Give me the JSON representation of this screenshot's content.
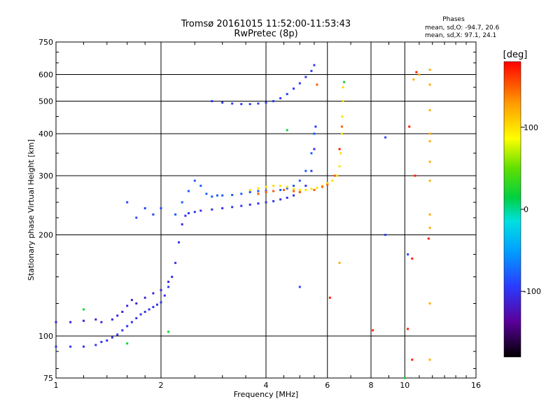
{
  "chart_data": {
    "type": "scatter",
    "title": "Tromsø 20161015 11:52:00-11:53:43",
    "subtitle": "RwPretec (8p)",
    "stats": {
      "heading": "Phases",
      "line1": "mean, sd,O: -94.7, 20.6",
      "line2": "mean, sd,X:  97.1, 24.1"
    },
    "xlabel": "Frequency [MHz]",
    "ylabel": "Stationary phase Virtual Height [km]",
    "x_scale": "log",
    "y_scale": "log",
    "xlim": [
      1,
      16
    ],
    "ylim": [
      75,
      750
    ],
    "x_ticks": [
      {
        "value": 1,
        "label": "1"
      },
      {
        "value": 2,
        "label": "2"
      },
      {
        "value": 4,
        "label": "4"
      },
      {
        "value": 6,
        "label": "6"
      },
      {
        "value": 8,
        "label": "8"
      },
      {
        "value": 10,
        "label": "10"
      },
      {
        "value": 16,
        "label": "16"
      }
    ],
    "y_ticks": [
      {
        "value": 75,
        "label": "75"
      },
      {
        "value": 100,
        "label": "100"
      },
      {
        "value": 200,
        "label": "200"
      },
      {
        "value": 300,
        "label": "300"
      },
      {
        "value": 400,
        "label": "400"
      },
      {
        "value": 500,
        "label": "500"
      },
      {
        "value": 600,
        "label": "600"
      },
      {
        "value": 750,
        "label": "750"
      }
    ],
    "grid_x": [
      2,
      4,
      6,
      8,
      10
    ],
    "grid_y": [
      100,
      200,
      300,
      400,
      500,
      600
    ],
    "colorbar": {
      "label": "[deg]",
      "range": [
        -180,
        180
      ],
      "ticks": [
        {
          "value": 100,
          "label": "100"
        },
        {
          "value": 0,
          "label": "0"
        },
        {
          "value": -100,
          "label": "-100"
        }
      ]
    },
    "series": [
      {
        "phase": -100,
        "points": [
          [
            1.0,
            93
          ],
          [
            1.1,
            93
          ],
          [
            1.2,
            93
          ],
          [
            1.3,
            94
          ],
          [
            1.35,
            96
          ],
          [
            1.4,
            97
          ],
          [
            1.45,
            99
          ],
          [
            1.5,
            101
          ],
          [
            1.55,
            104
          ],
          [
            1.6,
            107
          ],
          [
            1.65,
            110
          ],
          [
            1.7,
            113
          ],
          [
            1.75,
            116
          ],
          [
            1.8,
            118
          ],
          [
            1.85,
            120
          ],
          [
            1.9,
            122
          ],
          [
            1.95,
            124
          ],
          [
            2.0,
            126
          ],
          [
            2.05,
            132
          ],
          [
            2.1,
            140
          ],
          [
            2.15,
            150
          ],
          [
            2.2,
            165
          ],
          [
            2.25,
            190
          ],
          [
            2.3,
            215
          ],
          [
            2.35,
            228
          ],
          [
            2.4,
            232
          ],
          [
            2.5,
            234
          ],
          [
            2.6,
            236
          ],
          [
            2.8,
            238
          ],
          [
            3.0,
            240
          ],
          [
            3.2,
            242
          ],
          [
            3.4,
            244
          ],
          [
            3.6,
            246
          ],
          [
            3.8,
            248
          ],
          [
            4.0,
            250
          ],
          [
            4.2,
            252
          ],
          [
            4.4,
            255
          ],
          [
            4.6,
            258
          ],
          [
            4.8,
            262
          ],
          [
            5.0,
            268
          ],
          [
            5.2,
            280
          ],
          [
            5.4,
            310
          ],
          [
            5.5,
            360
          ],
          [
            5.55,
            420
          ]
        ]
      },
      {
        "phase": -110,
        "points": [
          [
            1.0,
            110
          ],
          [
            1.1,
            110
          ],
          [
            1.2,
            111
          ],
          [
            1.3,
            112
          ],
          [
            1.35,
            110
          ],
          [
            1.45,
            112
          ],
          [
            1.5,
            115
          ],
          [
            1.55,
            118
          ],
          [
            1.6,
            123
          ],
          [
            1.65,
            128
          ],
          [
            1.7,
            125
          ],
          [
            1.8,
            130
          ],
          [
            1.9,
            134
          ],
          [
            2.0,
            137
          ],
          [
            2.1,
            145
          ]
        ]
      },
      {
        "phase": -80,
        "points": [
          [
            2.2,
            230
          ],
          [
            2.3,
            250
          ],
          [
            2.4,
            270
          ],
          [
            2.5,
            290
          ],
          [
            2.6,
            280
          ],
          [
            2.7,
            265
          ],
          [
            2.8,
            260
          ],
          [
            2.9,
            262
          ],
          [
            3.0,
            262
          ],
          [
            3.2,
            263
          ],
          [
            3.4,
            265
          ],
          [
            3.6,
            268
          ],
          [
            3.8,
            270
          ],
          [
            4.0,
            270
          ],
          [
            4.2,
            270
          ],
          [
            4.4,
            272
          ],
          [
            4.6,
            275
          ],
          [
            4.8,
            280
          ],
          [
            5.0,
            290
          ],
          [
            5.2,
            310
          ],
          [
            5.4,
            350
          ],
          [
            5.5,
            400
          ]
        ]
      },
      {
        "phase": -95,
        "points": [
          [
            2.8,
            500
          ],
          [
            3.0,
            495
          ],
          [
            3.2,
            492
          ],
          [
            3.4,
            490
          ],
          [
            3.6,
            490
          ],
          [
            3.8,
            492
          ],
          [
            4.0,
            495
          ],
          [
            4.2,
            500
          ],
          [
            4.4,
            510
          ],
          [
            4.6,
            525
          ],
          [
            4.8,
            545
          ],
          [
            5.0,
            565
          ],
          [
            5.2,
            590
          ],
          [
            5.4,
            615
          ],
          [
            5.5,
            640
          ]
        ]
      },
      {
        "phase": 100,
        "points": [
          [
            3.6,
            272
          ],
          [
            3.8,
            275
          ],
          [
            4.0,
            278
          ],
          [
            4.2,
            280
          ],
          [
            4.4,
            280
          ],
          [
            4.6,
            278
          ],
          [
            4.8,
            274
          ],
          [
            5.0,
            272
          ],
          [
            5.2,
            272
          ],
          [
            5.4,
            274
          ],
          [
            5.6,
            276
          ],
          [
            5.8,
            280
          ],
          [
            6.0,
            285
          ],
          [
            6.2,
            290
          ],
          [
            6.4,
            300
          ],
          [
            6.5,
            320
          ],
          [
            6.55,
            350
          ],
          [
            6.6,
            400
          ],
          [
            6.62,
            450
          ],
          [
            6.65,
            500
          ],
          [
            6.65,
            550
          ]
        ]
      },
      {
        "phase": 150,
        "points": [
          [
            3.8,
            265
          ],
          [
            4.0,
            268
          ],
          [
            4.2,
            270
          ],
          [
            4.5,
            272
          ],
          [
            4.8,
            270
          ],
          [
            5.0,
            268
          ],
          [
            5.5,
            272
          ],
          [
            5.8,
            278
          ],
          [
            6.0,
            282
          ],
          [
            6.3,
            300
          ],
          [
            6.5,
            360
          ],
          [
            6.6,
            420
          ],
          [
            5.6,
            560
          ]
        ]
      },
      {
        "phase": 120,
        "points": [
          [
            10.6,
            580
          ],
          [
            11.0,
            600
          ],
          [
            11.8,
            620
          ],
          [
            11.8,
            560
          ],
          [
            11.8,
            470
          ],
          [
            11.8,
            400
          ],
          [
            11.8,
            380
          ],
          [
            11.8,
            330
          ],
          [
            11.8,
            290
          ],
          [
            11.8,
            230
          ],
          [
            11.8,
            210
          ],
          [
            11.8,
            125
          ],
          [
            11.8,
            85
          ],
          [
            6.5,
            165
          ]
        ]
      },
      {
        "phase": 170,
        "points": [
          [
            10.5,
            85
          ],
          [
            10.2,
            105
          ],
          [
            10.5,
            170
          ],
          [
            10.7,
            300
          ],
          [
            10.8,
            610
          ],
          [
            10.3,
            420
          ],
          [
            8.1,
            104
          ],
          [
            6.1,
            130
          ],
          [
            6.5,
            360
          ],
          [
            11.7,
            195
          ]
        ]
      },
      {
        "phase": -90,
        "points": [
          [
            8.8,
            390
          ],
          [
            5.0,
            140
          ],
          [
            1.6,
            250
          ],
          [
            1.8,
            240
          ],
          [
            2.0,
            240
          ],
          [
            1.9,
            230
          ],
          [
            1.7,
            225
          ],
          [
            10.2,
            175
          ],
          [
            8.8,
            200
          ]
        ]
      },
      {
        "phase": 20,
        "points": [
          [
            1.2,
            120
          ],
          [
            1.6,
            95
          ],
          [
            4.6,
            410
          ],
          [
            10.0,
            75
          ],
          [
            6.7,
            570
          ],
          [
            2.1,
            103
          ]
        ]
      }
    ]
  }
}
